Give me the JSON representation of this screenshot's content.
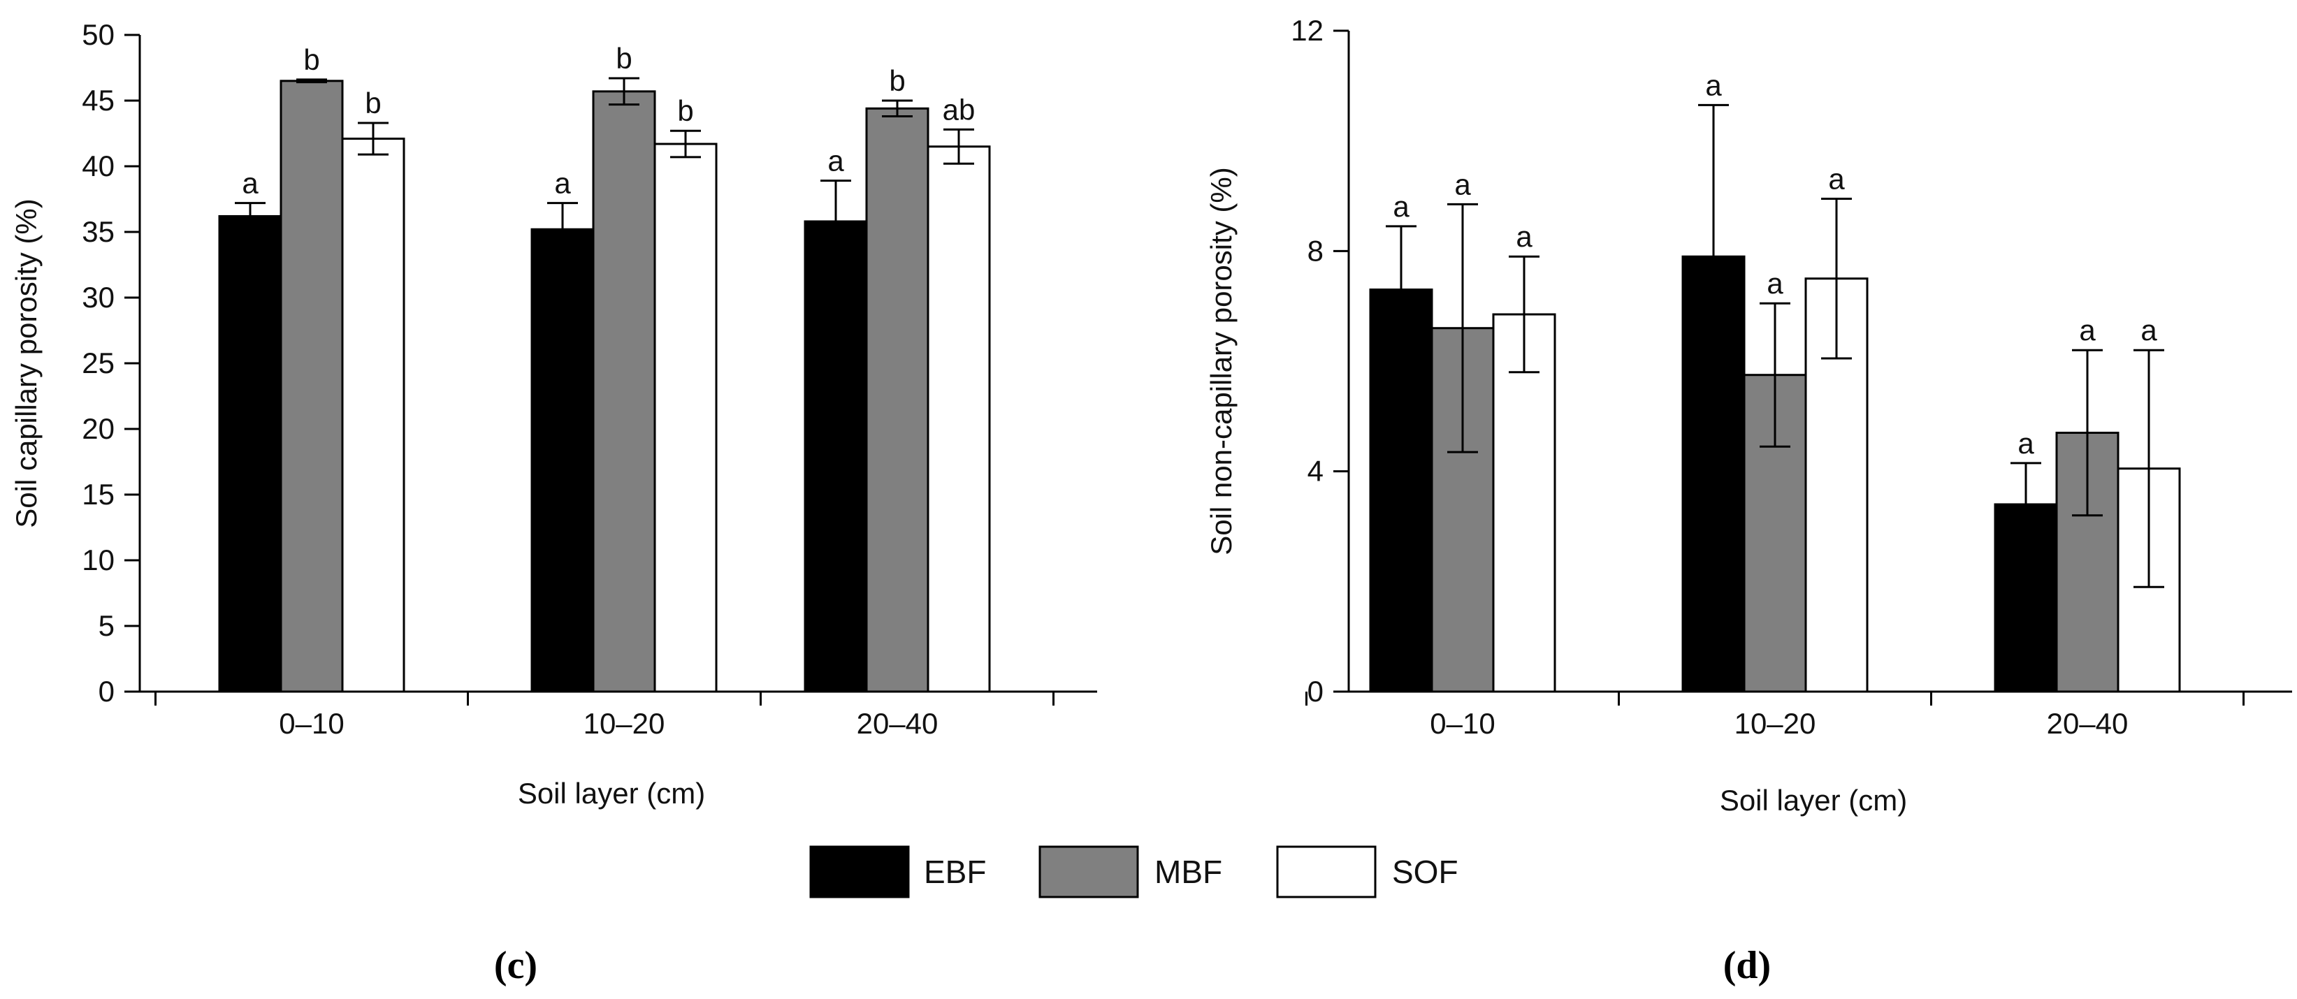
{
  "series_styles": [
    {
      "name": "EBF",
      "fill": "#000000"
    },
    {
      "name": "MBF",
      "fill": "#808080"
    },
    {
      "name": "SOF",
      "fill": "#ffffff"
    }
  ],
  "legend": {
    "items": [
      "EBF",
      "MBF",
      "SOF"
    ]
  },
  "chart_data": [
    {
      "type": "bar",
      "panel_label": "(c)",
      "xlabel": "Soil layer (cm)",
      "ylabel": "Soil capillary porosity (%)",
      "categories": [
        "0–10",
        "10–20",
        "20–40"
      ],
      "ylim": [
        0,
        50
      ],
      "yticks": [
        0,
        5,
        10,
        15,
        20,
        25,
        30,
        35,
        40,
        45,
        50
      ],
      "series": [
        {
          "name": "EBF",
          "values": [
            36.2,
            35.2,
            35.8
          ],
          "errors": [
            1.0,
            2.0,
            3.1
          ],
          "letters": [
            "a",
            "a",
            "a"
          ]
        },
        {
          "name": "MBF",
          "values": [
            46.5,
            45.7,
            44.4
          ],
          "errors": [
            0.1,
            1.0,
            0.6
          ],
          "letters": [
            "b",
            "b",
            "b"
          ]
        },
        {
          "name": "SOF",
          "values": [
            42.1,
            41.7,
            41.5
          ],
          "errors": [
            1.2,
            1.0,
            1.3
          ],
          "letters": [
            "b",
            "b",
            "ab"
          ]
        }
      ]
    },
    {
      "type": "bar",
      "panel_label": "(d)",
      "xlabel": "Soil layer (cm)",
      "ylabel": "Soil non-capillary porosity (%)",
      "categories": [
        "0–10",
        "10–20",
        "20–40"
      ],
      "ylim": [
        0,
        12
      ],
      "yticks": [
        0,
        4,
        8,
        12
      ],
      "series": [
        {
          "name": "EBF",
          "values": [
            7.3,
            7.9,
            3.4
          ],
          "errors": [
            1.15,
            2.75,
            0.75
          ],
          "letters": [
            "a",
            "a",
            "a"
          ]
        },
        {
          "name": "MBF",
          "values": [
            6.6,
            5.75,
            4.7
          ],
          "errors": [
            2.25,
            1.3,
            1.5
          ],
          "letters": [
            "a",
            "a",
            "a"
          ]
        },
        {
          "name": "SOF",
          "values": [
            6.85,
            7.5,
            4.05
          ],
          "errors": [
            1.05,
            1.45,
            2.15
          ],
          "letters": [
            "a",
            "a",
            "a"
          ]
        }
      ]
    }
  ]
}
